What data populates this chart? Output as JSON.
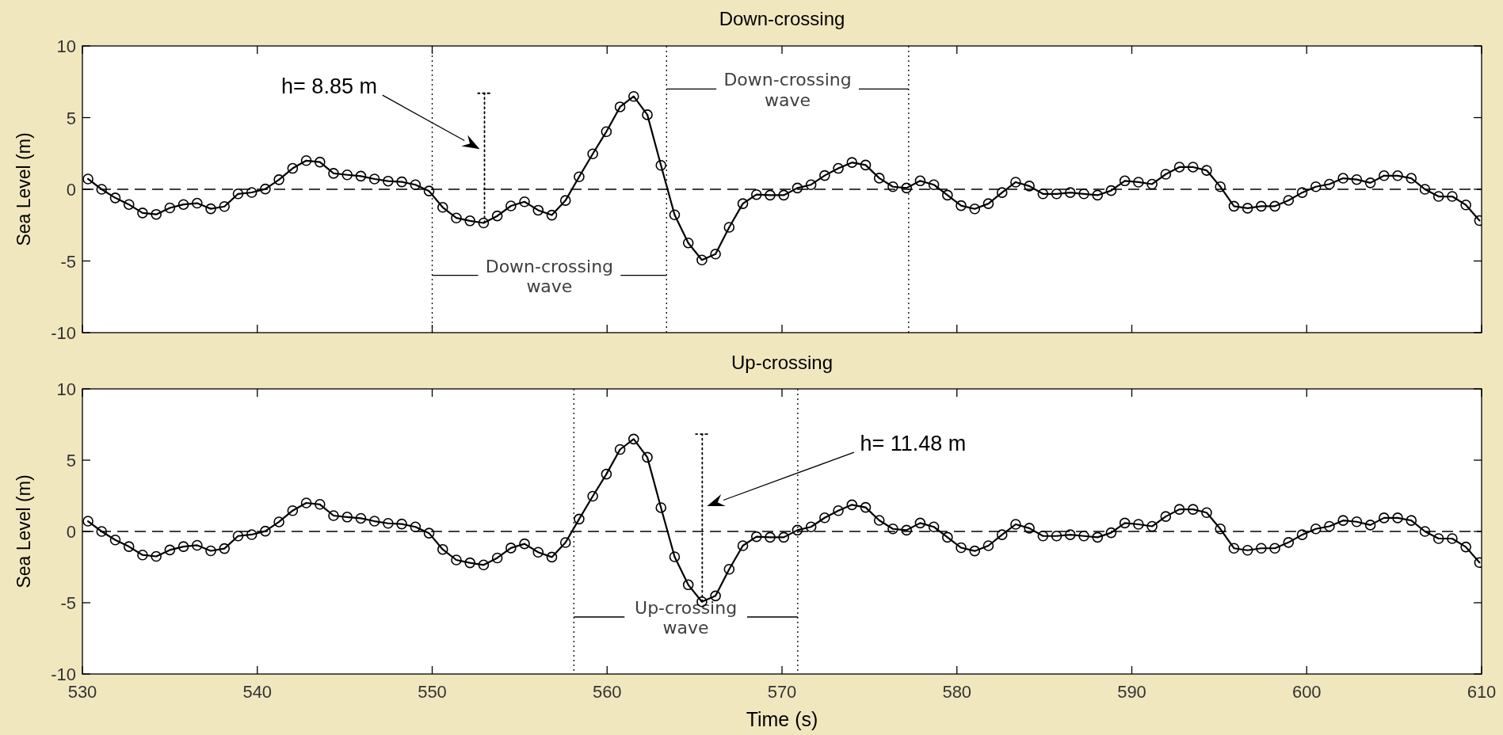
{
  "chart_data": [
    {
      "type": "line",
      "title": "Down-crossing",
      "ylabel": "Sea Level (m)",
      "xlim": [
        530,
        610
      ],
      "ylim": [
        -10,
        10
      ],
      "xticks": [
        530,
        540,
        550,
        560,
        570,
        580,
        590,
        600,
        610
      ],
      "yticks": [
        -10,
        -5,
        0,
        5,
        10
      ],
      "tick_labels": "y",
      "marker": "circle",
      "x": [
        530.32,
        531.1,
        531.88,
        532.66,
        533.44,
        534.22,
        535.0,
        535.78,
        536.56,
        537.34,
        538.12,
        538.9,
        539.68,
        540.46,
        541.24,
        542.02,
        542.8,
        543.58,
        544.36,
        545.14,
        545.92,
        546.7,
        547.48,
        548.26,
        549.04,
        549.82,
        550.6,
        551.38,
        552.16,
        552.94,
        553.72,
        554.5,
        555.28,
        556.06,
        556.84,
        557.62,
        558.4,
        559.18,
        559.96,
        560.74,
        561.52,
        562.3,
        563.08,
        563.86,
        564.64,
        565.42,
        566.2,
        566.98,
        567.76,
        568.54,
        569.32,
        570.1,
        570.88,
        571.66,
        572.44,
        573.22,
        574.0,
        574.78,
        575.56,
        576.34,
        577.12,
        577.9,
        578.68,
        579.46,
        580.24,
        581.02,
        581.8,
        582.58,
        583.36,
        584.14,
        584.92,
        585.7,
        586.48,
        587.26,
        588.04,
        588.82,
        589.6,
        590.38,
        591.16,
        591.94,
        592.72,
        593.5,
        594.28,
        595.06,
        595.84,
        596.62,
        597.4,
        598.18,
        598.96,
        599.74,
        600.52,
        601.3,
        602.08,
        602.86,
        603.64,
        604.42,
        605.2,
        605.98,
        606.76,
        607.54,
        608.32,
        609.1,
        609.88
      ],
      "series": [
        {
          "color": "#000000",
          "values": [
            0.72,
            0,
            -0.6,
            -1.06,
            -1.65,
            -1.75,
            -1.3,
            -1.06,
            -0.97,
            -1.36,
            -1.2,
            -0.32,
            -0.22,
            0.02,
            0.67,
            1.46,
            2.0,
            1.9,
            1.11,
            1.01,
            0.92,
            0.72,
            0.57,
            0.52,
            0.32,
            -0.12,
            -1.26,
            -2.0,
            -2.2,
            -2.35,
            -1.86,
            -1.16,
            -0.87,
            -1.46,
            -1.8,
            -0.78,
            0.87,
            2.47,
            4.02,
            5.75,
            6.48,
            5.2,
            1.67,
            -1.78,
            -3.74,
            -4.93,
            -4.52,
            -2.65,
            -1.0,
            -0.37,
            -0.41,
            -0.41,
            0.09,
            0.32,
            0.96,
            1.46,
            1.87,
            1.69,
            0.78,
            0.18,
            0.09,
            0.59,
            0.32,
            -0.41,
            -1.14,
            -1.37,
            -1.0,
            -0.23,
            0.5,
            0.23,
            -0.32,
            -0.32,
            -0.23,
            -0.32,
            -0.41,
            -0.09,
            0.59,
            0.5,
            0.36,
            1.05,
            1.55,
            1.55,
            1.32,
            0.18,
            -1.18,
            -1.32,
            -1.18,
            -1.18,
            -0.77,
            -0.23,
            0.18,
            0.36,
            0.77,
            0.68,
            0.45,
            0.95,
            0.95,
            0.77,
            0,
            -0.5,
            -0.5,
            -1.09,
            -2.18
          ]
        },
        {
          "type": "line",
          "color": "#000000",
          "x": [
            552.62,
            553.36,
            552.99,
            552.99
          ],
          "values": [
            6.7,
            6.7,
            6.7,
            -2.35
          ],
          "line_style": "dotted",
          "marker": "none"
        }
      ],
      "ref_lines": [
        {
          "axis": "y",
          "value": 0,
          "line_style": "dashed",
          "color": "#000000"
        },
        {
          "axis": "x",
          "value": 550,
          "line_style": "dotted",
          "color": "#000000"
        },
        {
          "axis": "x",
          "value": 563.4,
          "line_style": "dotted",
          "color": "#000000"
        },
        {
          "axis": "x",
          "value": 577.24,
          "line_style": "dotted",
          "color": "#000000"
        }
      ],
      "annotations": [
        "h= 8.85 m",
        "Down-crossing wave",
        "Down-crossing wave"
      ]
    },
    {
      "type": "line",
      "title": "Up-crossing",
      "xlabel": "Time (s)",
      "ylabel": "Sea Level (m)",
      "xlim": [
        530,
        610
      ],
      "ylim": [
        -10,
        10
      ],
      "xticks": [
        530,
        540,
        550,
        560,
        570,
        580,
        590,
        600,
        610
      ],
      "yticks": [
        -10,
        -5,
        0,
        5,
        10
      ],
      "marker": "circle",
      "x": [
        530.32,
        531.1,
        531.88,
        532.66,
        533.44,
        534.22,
        535.0,
        535.78,
        536.56,
        537.34,
        538.12,
        538.9,
        539.68,
        540.46,
        541.24,
        542.02,
        542.8,
        543.58,
        544.36,
        545.14,
        545.92,
        546.7,
        547.48,
        548.26,
        549.04,
        549.82,
        550.6,
        551.38,
        552.16,
        552.94,
        553.72,
        554.5,
        555.28,
        556.06,
        556.84,
        557.62,
        558.4,
        559.18,
        559.96,
        560.74,
        561.52,
        562.3,
        563.08,
        563.86,
        564.64,
        565.42,
        566.2,
        566.98,
        567.76,
        568.54,
        569.32,
        570.1,
        570.88,
        571.66,
        572.44,
        573.22,
        574.0,
        574.78,
        575.56,
        576.34,
        577.12,
        577.9,
        578.68,
        579.46,
        580.24,
        581.02,
        581.8,
        582.58,
        583.36,
        584.14,
        584.92,
        585.7,
        586.48,
        587.26,
        588.04,
        588.82,
        589.6,
        590.38,
        591.16,
        591.94,
        592.72,
        593.5,
        594.28,
        595.06,
        595.84,
        596.62,
        597.4,
        598.18,
        598.96,
        599.74,
        600.52,
        601.3,
        602.08,
        602.86,
        603.64,
        604.42,
        605.2,
        605.98,
        606.76,
        607.54,
        608.32,
        609.1,
        609.88
      ],
      "series": [
        {
          "color": "#000000",
          "values": [
            0.72,
            0,
            -0.6,
            -1.06,
            -1.65,
            -1.75,
            -1.3,
            -1.06,
            -0.97,
            -1.36,
            -1.2,
            -0.32,
            -0.22,
            0.02,
            0.67,
            1.46,
            2.0,
            1.9,
            1.11,
            1.01,
            0.92,
            0.72,
            0.57,
            0.52,
            0.32,
            -0.12,
            -1.26,
            -2.0,
            -2.2,
            -2.35,
            -1.86,
            -1.16,
            -0.87,
            -1.46,
            -1.8,
            -0.78,
            0.87,
            2.47,
            4.02,
            5.75,
            6.48,
            5.2,
            1.67,
            -1.78,
            -3.74,
            -4.93,
            -4.52,
            -2.65,
            -1.0,
            -0.37,
            -0.41,
            -0.41,
            0.09,
            0.32,
            0.96,
            1.46,
            1.87,
            1.69,
            0.78,
            0.18,
            0.09,
            0.59,
            0.32,
            -0.41,
            -1.14,
            -1.37,
            -1.0,
            -0.23,
            0.5,
            0.23,
            -0.32,
            -0.32,
            -0.23,
            -0.32,
            -0.41,
            -0.09,
            0.59,
            0.5,
            0.36,
            1.05,
            1.55,
            1.55,
            1.32,
            0.18,
            -1.18,
            -1.32,
            -1.18,
            -1.18,
            -0.77,
            -0.23,
            0.18,
            0.36,
            0.77,
            0.68,
            0.45,
            0.95,
            0.95,
            0.77,
            0,
            -0.5,
            -0.5,
            -1.09,
            -2.18
          ]
        },
        {
          "type": "line",
          "color": "#000000",
          "x": [
            565.07,
            565.81,
            565.44,
            565.44
          ],
          "values": [
            6.83,
            6.83,
            6.83,
            -4.93
          ],
          "line_style": "dotted",
          "marker": "none"
        }
      ],
      "ref_lines": [
        {
          "axis": "y",
          "value": 0,
          "line_style": "dashed",
          "color": "#000000"
        },
        {
          "axis": "x",
          "value": 558.1,
          "line_style": "dotted",
          "color": "#000000"
        },
        {
          "axis": "x",
          "value": 570.9,
          "line_style": "dotted",
          "color": "#000000"
        }
      ],
      "annotations": [
        "h= 11.48 m",
        "Up-crossing wave"
      ]
    }
  ]
}
